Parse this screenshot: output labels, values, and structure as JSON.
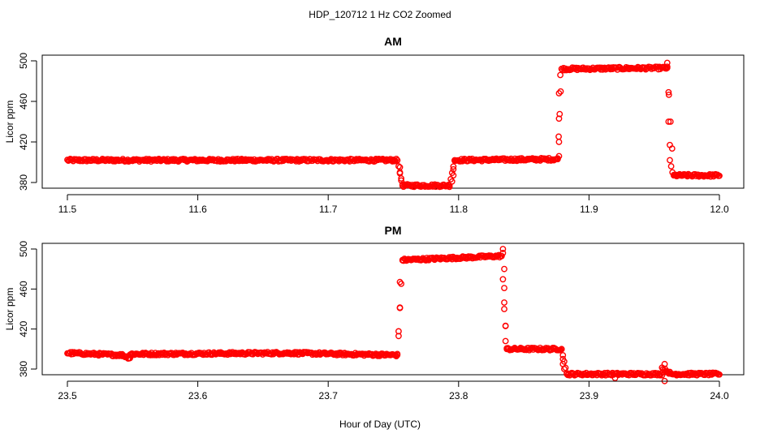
{
  "figure": {
    "title": "HDP_120712  1 Hz CO2 Zoomed",
    "xlabel": "Hour of Day (UTC)",
    "point_color": "#ff0000",
    "marker": "open-circle"
  },
  "chart_data": [
    {
      "type": "scatter",
      "title": "AM",
      "xlabel": "Hour of Day (UTC)",
      "ylabel": "Licor ppm",
      "xlim": [
        11.5,
        12.0
      ],
      "ylim": [
        372,
        502
      ],
      "xticks": [
        11.5,
        11.6,
        11.7,
        11.8,
        11.9,
        12.0
      ],
      "xtick_labels": [
        "11.5",
        "11.6",
        "11.7",
        "11.8",
        "11.9",
        "12.0"
      ],
      "yticks": [
        380,
        420,
        460,
        500
      ],
      "ytick_labels": [
        "380",
        "420",
        "460",
        "500"
      ],
      "segments": [
        {
          "x": [
            11.5,
            11.753
          ],
          "y": [
            402,
            402
          ]
        },
        {
          "x": [
            11.753,
            11.757
          ],
          "y": [
            402,
            378
          ]
        },
        {
          "x": [
            11.757,
            11.793
          ],
          "y": [
            377,
            377
          ]
        },
        {
          "x": [
            11.793,
            11.797
          ],
          "y": [
            377,
            402
          ]
        },
        {
          "x": [
            11.797,
            11.876
          ],
          "y": [
            402,
            403
          ]
        },
        {
          "x": [
            11.876,
            11.879
          ],
          "y": [
            403,
            492
          ]
        },
        {
          "x": [
            11.879,
            11.96
          ],
          "y": [
            492,
            493
          ]
        },
        {
          "x": [
            11.96,
            11.965
          ],
          "y": [
            493,
            387
          ]
        },
        {
          "x": [
            11.965,
            12.0
          ],
          "y": [
            387,
            387
          ]
        }
      ],
      "outliers": [
        {
          "x": 11.755,
          "y": 395
        },
        {
          "x": 11.755,
          "y": 389
        },
        {
          "x": 11.756,
          "y": 382
        },
        {
          "x": 11.795,
          "y": 381
        },
        {
          "x": 11.796,
          "y": 387
        },
        {
          "x": 11.796,
          "y": 393
        },
        {
          "x": 11.877,
          "y": 406
        },
        {
          "x": 11.877,
          "y": 420
        },
        {
          "x": 11.877,
          "y": 443
        },
        {
          "x": 11.877,
          "y": 468
        },
        {
          "x": 11.878,
          "y": 486
        },
        {
          "x": 11.96,
          "y": 498
        },
        {
          "x": 11.961,
          "y": 469
        },
        {
          "x": 11.961,
          "y": 440
        },
        {
          "x": 11.962,
          "y": 417
        },
        {
          "x": 11.962,
          "y": 402
        },
        {
          "x": 11.963,
          "y": 396
        },
        {
          "x": 11.964,
          "y": 390
        }
      ]
    },
    {
      "type": "scatter",
      "title": "PM",
      "xlabel": "Hour of Day (UTC)",
      "ylabel": "Licor ppm",
      "xlim": [
        23.5,
        24.0
      ],
      "ylim": [
        365,
        502
      ],
      "xticks": [
        23.5,
        23.6,
        23.7,
        23.8,
        23.9,
        24.0
      ],
      "xtick_labels": [
        "23.5",
        "23.6",
        "23.7",
        "23.8",
        "23.9",
        "24.0"
      ],
      "yticks": [
        380,
        420,
        460,
        500
      ],
      "ytick_labels": [
        "380",
        "420",
        "460",
        "500"
      ],
      "segments": [
        {
          "x": [
            23.5,
            23.542
          ],
          "y": [
            396,
            394
          ]
        },
        {
          "x": [
            23.542,
            23.548
          ],
          "y": [
            394,
            391
          ]
        },
        {
          "x": [
            23.548,
            23.67
          ],
          "y": [
            395,
            396
          ]
        },
        {
          "x": [
            23.67,
            23.753
          ],
          "y": [
            396,
            394
          ]
        },
        {
          "x": [
            23.753,
            23.757
          ],
          "y": [
            394,
            489
          ]
        },
        {
          "x": [
            23.757,
            23.833
          ],
          "y": [
            489,
            493
          ]
        },
        {
          "x": [
            23.833,
            23.837
          ],
          "y": [
            493,
            400
          ]
        },
        {
          "x": [
            23.837,
            23.879
          ],
          "y": [
            400,
            400
          ]
        },
        {
          "x": [
            23.879,
            23.883
          ],
          "y": [
            400,
            375
          ]
        },
        {
          "x": [
            23.883,
            23.956
          ],
          "y": [
            375,
            375
          ]
        },
        {
          "x": [
            23.956,
            23.962
          ],
          "y": [
            381,
            376
          ]
        },
        {
          "x": [
            23.962,
            24.0
          ],
          "y": [
            375,
            375
          ]
        }
      ],
      "outliers": [
        {
          "x": 23.754,
          "y": 413
        },
        {
          "x": 23.755,
          "y": 441
        },
        {
          "x": 23.755,
          "y": 467
        },
        {
          "x": 23.834,
          "y": 500
        },
        {
          "x": 23.834,
          "y": 496
        },
        {
          "x": 23.835,
          "y": 480
        },
        {
          "x": 23.835,
          "y": 461
        },
        {
          "x": 23.835,
          "y": 440
        },
        {
          "x": 23.836,
          "y": 423
        },
        {
          "x": 23.836,
          "y": 408
        },
        {
          "x": 23.88,
          "y": 390
        },
        {
          "x": 23.88,
          "y": 385
        },
        {
          "x": 23.881,
          "y": 380
        },
        {
          "x": 23.958,
          "y": 385
        },
        {
          "x": 23.958,
          "y": 368
        },
        {
          "x": 23.92,
          "y": 371
        }
      ]
    }
  ]
}
